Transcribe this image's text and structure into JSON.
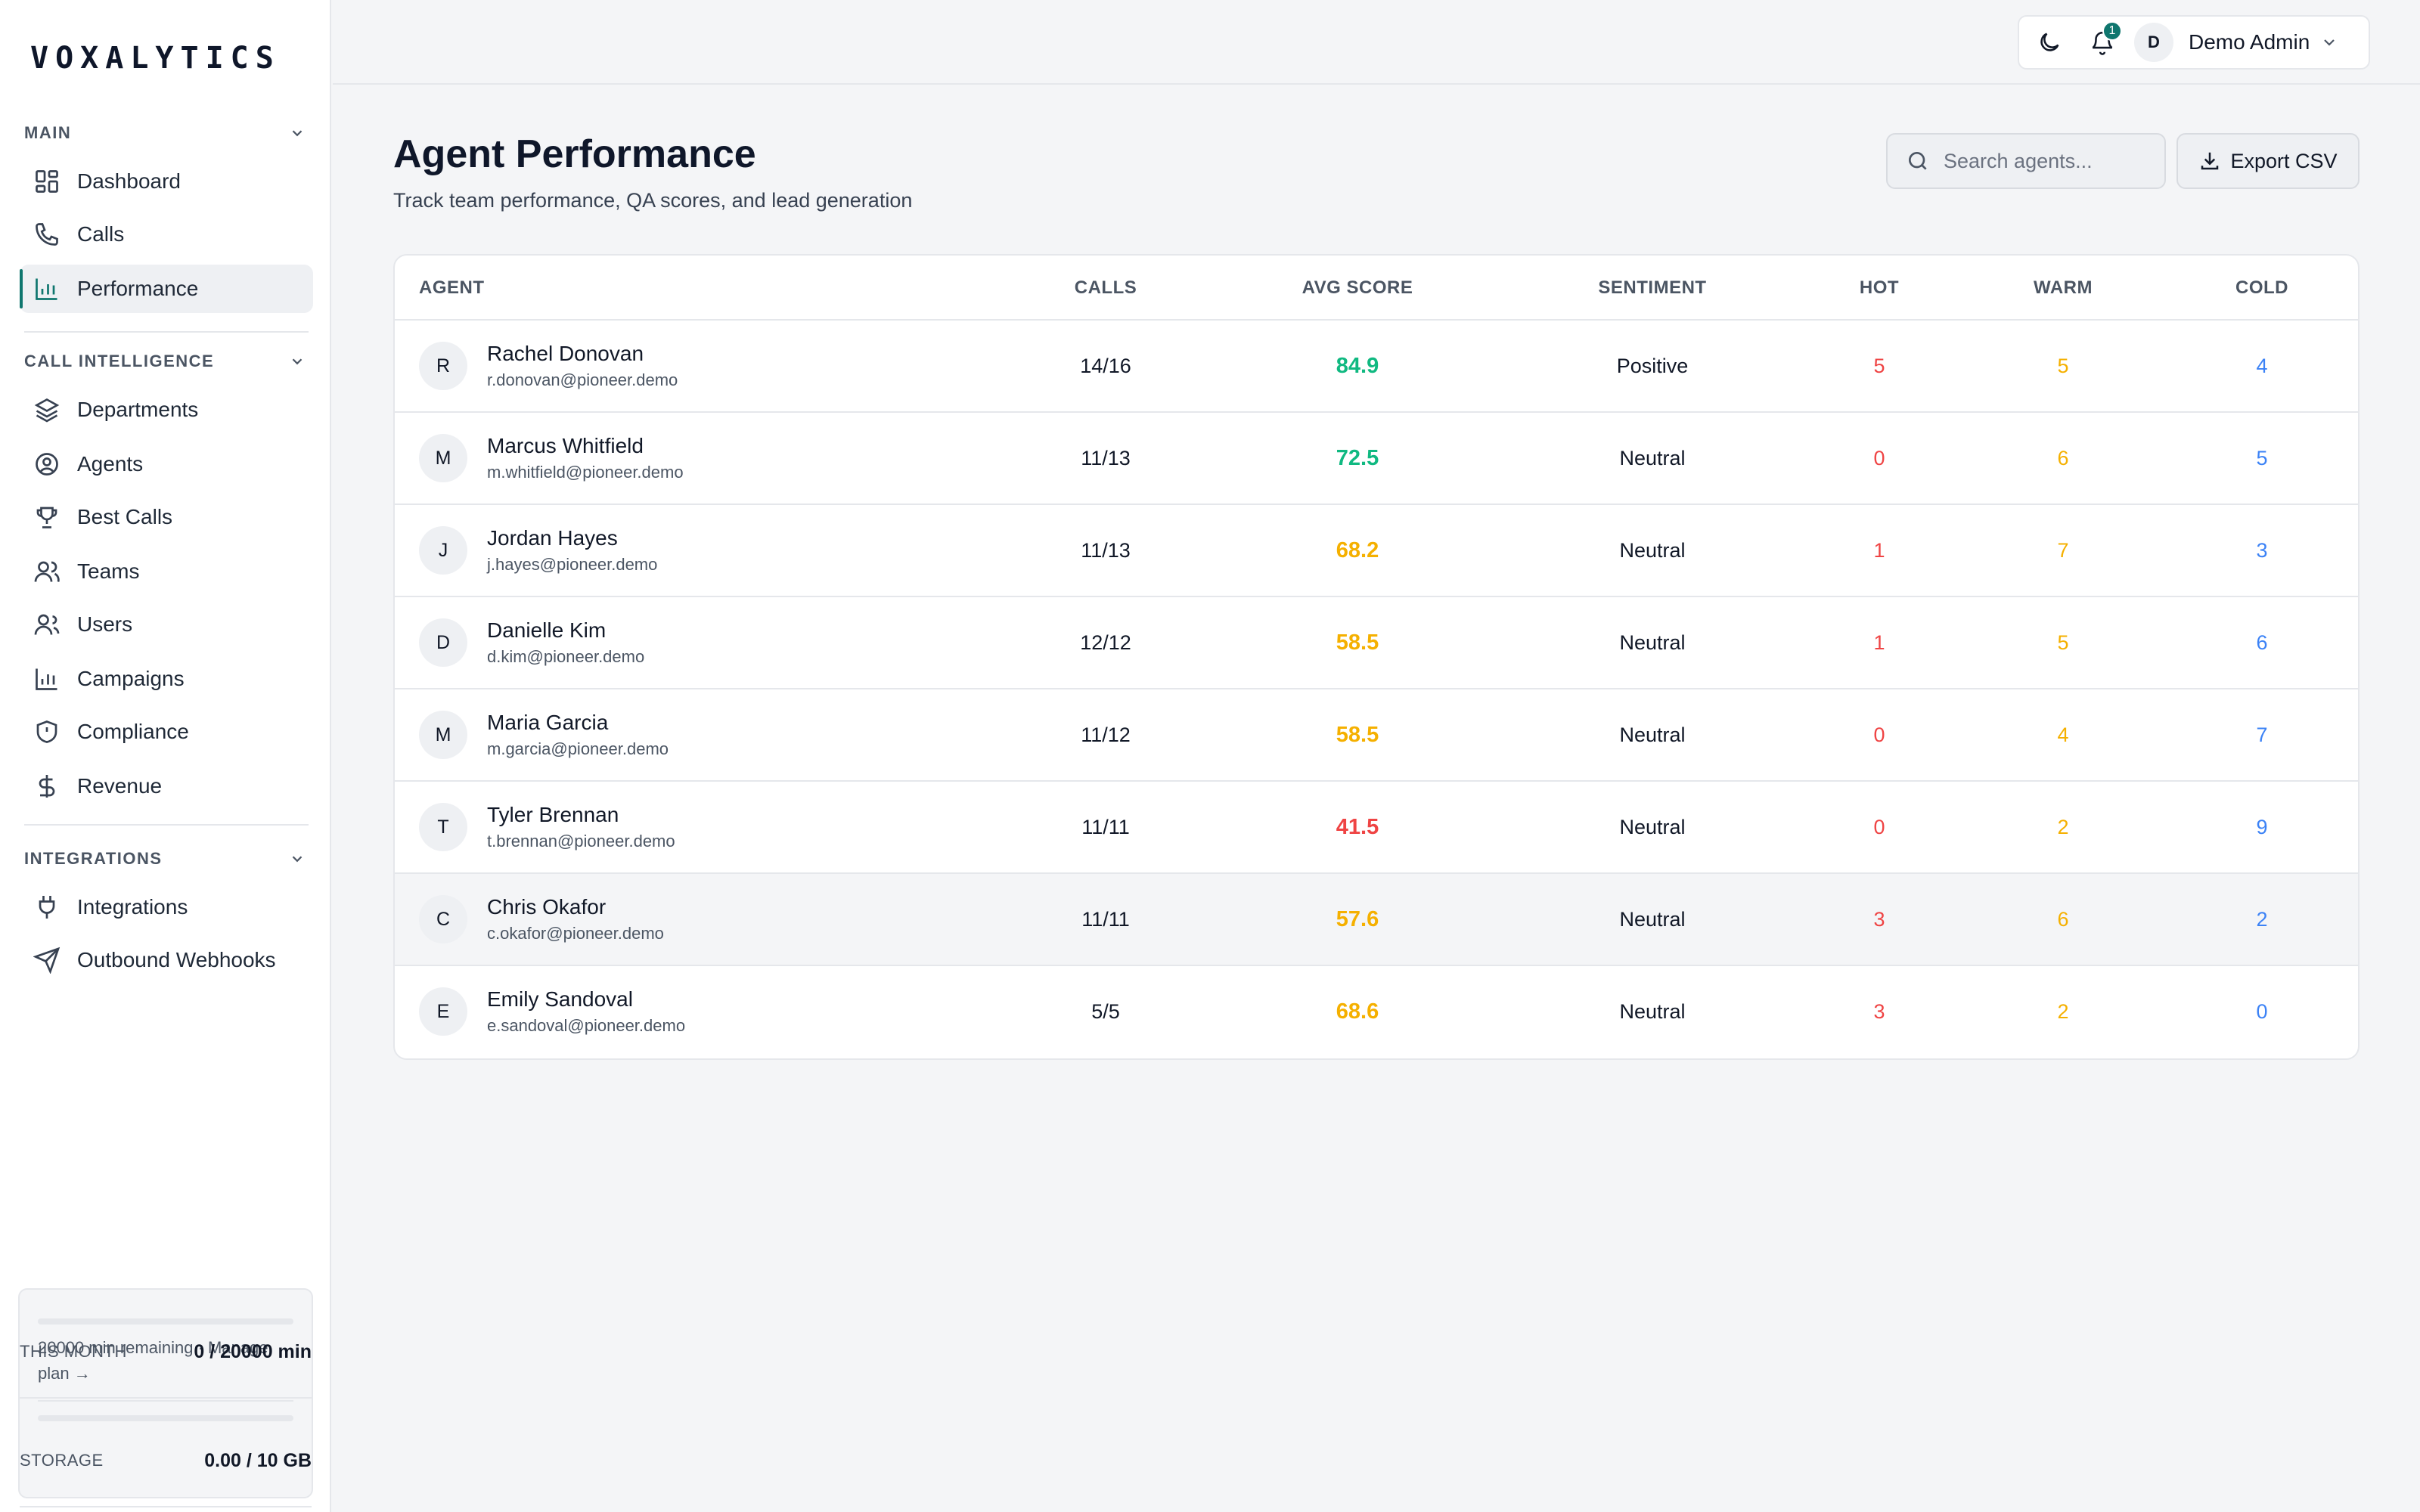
{
  "app": {
    "logo": "VOXALYTICS"
  },
  "sidebar": {
    "sections": [
      {
        "title": "MAIN",
        "items": [
          {
            "label": "Dashboard",
            "icon": "dashboard-icon"
          },
          {
            "label": "Calls",
            "icon": "phone-icon"
          },
          {
            "label": "Performance",
            "icon": "bar-chart-icon",
            "active": true
          }
        ]
      },
      {
        "title": "CALL INTELLIGENCE",
        "items": [
          {
            "label": "Departments",
            "icon": "layers-icon"
          },
          {
            "label": "Agents",
            "icon": "user-circle-icon"
          },
          {
            "label": "Best Calls",
            "icon": "trophy-icon"
          },
          {
            "label": "Teams",
            "icon": "team-icon"
          },
          {
            "label": "Users",
            "icon": "users-icon"
          },
          {
            "label": "Campaigns",
            "icon": "bar-chart-icon"
          },
          {
            "label": "Compliance",
            "icon": "shield-icon"
          },
          {
            "label": "Revenue",
            "icon": "dollar-icon"
          }
        ]
      },
      {
        "title": "INTEGRATIONS",
        "items": [
          {
            "label": "Integrations",
            "icon": "plug-icon"
          },
          {
            "label": "Outbound Webhooks",
            "icon": "send-icon"
          }
        ]
      }
    ],
    "usage": {
      "month_label": "THIS MONTH",
      "month_value": "0 / 20000 min",
      "month_progress": 0,
      "note": "20000 min remaining · Manage plan →",
      "storage_label": "STORAGE",
      "storage_value": "0.00 / 10 GB",
      "storage_progress": 0
    }
  },
  "topbar": {
    "theme_icon": "moon-icon",
    "notification_icon": "bell-icon",
    "notification_count": "1",
    "user_initial": "D",
    "user_name": "Demo Admin"
  },
  "page": {
    "title": "Agent Performance",
    "subtitle": "Track team performance, QA scores, and lead generation",
    "search_placeholder": "Search agents...",
    "export_label": "Export CSV"
  },
  "table": {
    "columns": [
      "AGENT",
      "CALLS",
      "AVG SCORE",
      "SENTIMENT",
      "HOT",
      "WARM",
      "COLD"
    ],
    "rows": [
      {
        "initial": "R",
        "name": "Rachel Donovan",
        "email": "r.donovan@pioneer.demo",
        "calls": "14/16",
        "score": "84.9",
        "score_color": "#10b981",
        "sentiment": "Positive",
        "hot": "5",
        "warm": "5",
        "cold": "4"
      },
      {
        "initial": "M",
        "name": "Marcus Whitfield",
        "email": "m.whitfield@pioneer.demo",
        "calls": "11/13",
        "score": "72.5",
        "score_color": "#10b981",
        "sentiment": "Neutral",
        "hot": "0",
        "warm": "6",
        "cold": "5"
      },
      {
        "initial": "J",
        "name": "Jordan Hayes",
        "email": "j.hayes@pioneer.demo",
        "calls": "11/13",
        "score": "68.2",
        "score_color": "#f5b000",
        "sentiment": "Neutral",
        "hot": "1",
        "warm": "7",
        "cold": "3"
      },
      {
        "initial": "D",
        "name": "Danielle Kim",
        "email": "d.kim@pioneer.demo",
        "calls": "12/12",
        "score": "58.5",
        "score_color": "#f5b000",
        "sentiment": "Neutral",
        "hot": "1",
        "warm": "5",
        "cold": "6"
      },
      {
        "initial": "M",
        "name": "Maria Garcia",
        "email": "m.garcia@pioneer.demo",
        "calls": "11/12",
        "score": "58.5",
        "score_color": "#f5b000",
        "sentiment": "Neutral",
        "hot": "0",
        "warm": "4",
        "cold": "7"
      },
      {
        "initial": "T",
        "name": "Tyler Brennan",
        "email": "t.brennan@pioneer.demo",
        "calls": "11/11",
        "score": "41.5",
        "score_color": "#ef4444",
        "sentiment": "Neutral",
        "hot": "0",
        "warm": "2",
        "cold": "9"
      },
      {
        "initial": "C",
        "name": "Chris Okafor",
        "email": "c.okafor@pioneer.demo",
        "calls": "11/11",
        "score": "57.6",
        "score_color": "#f5b000",
        "sentiment": "Neutral",
        "hot": "3",
        "warm": "6",
        "cold": "2"
      },
      {
        "initial": "E",
        "name": "Emily Sandoval",
        "email": "e.sandoval@pioneer.demo",
        "calls": "5/5",
        "score": "68.6",
        "score_color": "#f5b000",
        "sentiment": "Neutral",
        "hot": "3",
        "warm": "2",
        "cold": "0"
      }
    ]
  },
  "colors": {
    "accent": "#0f766e",
    "hot": "#ef4444",
    "warm": "#f5b000",
    "cold": "#3b82f6"
  }
}
